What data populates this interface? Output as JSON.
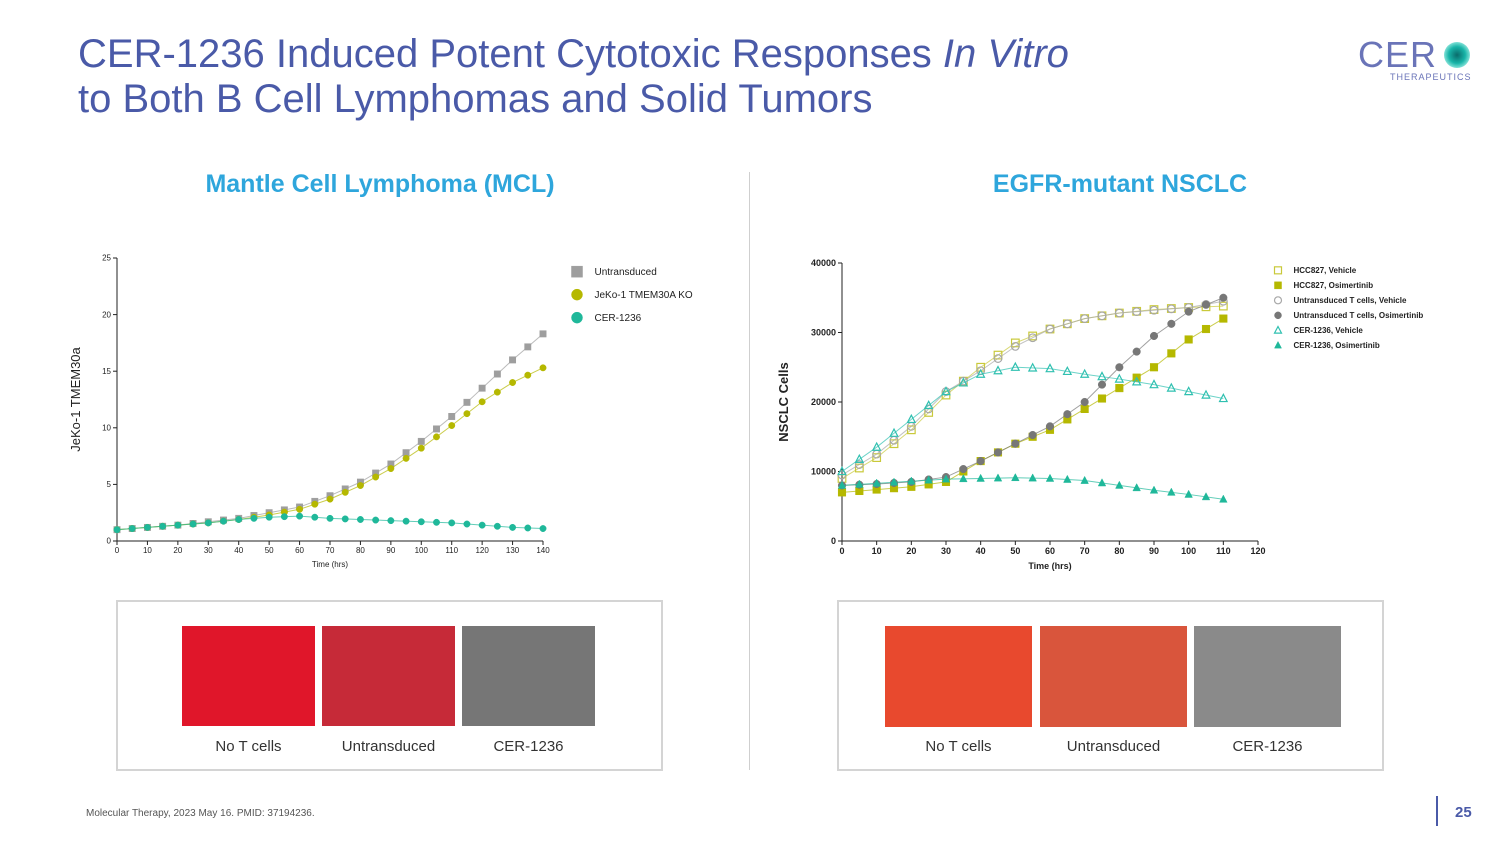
{
  "slide": {
    "title_line1_a": "CER-1236 Induced Potent Cytotoxic Responses ",
    "title_line1_b": "In Vitro",
    "title_line2": "to Both B Cell Lymphomas and Solid Tumors",
    "logo_main": "CER",
    "logo_sub": "THERAPEUTICS",
    "left_section_title": "Mantle Cell Lymphoma (MCL)",
    "right_section_title": "EGFR-mutant NSCLC",
    "footer": "Molecular Therapy, 2023 May 16. PMID: 37194236.",
    "page_number": "25",
    "left_images": [
      {
        "label": "No T cells",
        "color": "#e0162a"
      },
      {
        "label": "Untransduced",
        "color": "#c62a38"
      },
      {
        "label": "CER-1236",
        "color": "#767676"
      }
    ],
    "right_images": [
      {
        "label": "No T cells",
        "color": "#e8492e"
      },
      {
        "label": "Untransduced",
        "color": "#d9553c"
      },
      {
        "label": "CER-1236",
        "color": "#8a8a8a"
      }
    ]
  },
  "chart_data": [
    {
      "type": "line",
      "title": "Mantle Cell Lymphoma (MCL)",
      "xlabel": "Time (hrs)",
      "ylabel": "JeKo-1 TMEM30a",
      "xlim": [
        0,
        140
      ],
      "ylim": [
        0,
        25
      ],
      "xticks": [
        0,
        10,
        20,
        30,
        40,
        50,
        60,
        70,
        80,
        90,
        100,
        110,
        120,
        130,
        140
      ],
      "yticks": [
        0,
        5,
        10,
        15,
        20,
        25
      ],
      "legend_position": "top-right",
      "x": [
        0,
        10,
        20,
        30,
        40,
        50,
        60,
        70,
        80,
        90,
        100,
        110,
        120,
        130,
        140
      ],
      "series": [
        {
          "name": "Untransduced",
          "color": "#9e9e9e",
          "marker": "square",
          "values": [
            1.0,
            1.2,
            1.4,
            1.7,
            2.0,
            2.5,
            3.0,
            4.0,
            5.2,
            6.8,
            8.8,
            11.0,
            13.5,
            16.0,
            18.3
          ]
        },
        {
          "name": "JeKo-1 TMEM30A KO",
          "color": "#b5b800",
          "marker": "circle",
          "values": [
            1.0,
            1.2,
            1.4,
            1.6,
            1.9,
            2.3,
            2.8,
            3.7,
            4.9,
            6.4,
            8.2,
            10.2,
            12.3,
            14.0,
            15.3
          ]
        },
        {
          "name": "CER-1236",
          "color": "#1fb89a",
          "marker": "circle",
          "values": [
            1.0,
            1.2,
            1.4,
            1.6,
            1.9,
            2.1,
            2.2,
            2.0,
            1.9,
            1.8,
            1.7,
            1.6,
            1.4,
            1.2,
            1.1
          ]
        }
      ]
    },
    {
      "type": "line",
      "title": "EGFR-mutant NSCLC",
      "xlabel": "Time (hrs)",
      "ylabel": "NSCLC Cells",
      "xlim": [
        0,
        120
      ],
      "ylim": [
        0,
        40000
      ],
      "xticks": [
        0,
        10,
        20,
        30,
        40,
        50,
        60,
        70,
        80,
        90,
        100,
        110,
        120
      ],
      "yticks": [
        0,
        10000,
        20000,
        30000,
        40000
      ],
      "legend_position": "top-right",
      "x": [
        0,
        10,
        20,
        30,
        40,
        50,
        60,
        70,
        80,
        90,
        100,
        110
      ],
      "series": [
        {
          "name": "HCC827, Vehicle",
          "color": "#c9c93a",
          "marker": "square-open",
          "values": [
            9000,
            12000,
            16000,
            21000,
            25000,
            28500,
            30500,
            32000,
            32800,
            33300,
            33600,
            33800
          ]
        },
        {
          "name": "HCC827, Osimertinib",
          "color": "#b5b800",
          "marker": "square",
          "values": [
            7000,
            7400,
            7800,
            8500,
            11500,
            14000,
            16000,
            19000,
            22000,
            25000,
            29000,
            32000
          ]
        },
        {
          "name": "Untransduced T cells, Vehicle",
          "color": "#a8a8a8",
          "marker": "circle-open",
          "values": [
            9500,
            12500,
            16500,
            21500,
            24500,
            28000,
            30500,
            32000,
            32800,
            33200,
            33600,
            34500
          ]
        },
        {
          "name": "Untransduced T cells, Osimertinib",
          "color": "#777777",
          "marker": "circle",
          "values": [
            8000,
            8200,
            8500,
            9200,
            11500,
            14000,
            16500,
            20000,
            25000,
            29500,
            33000,
            35000
          ]
        },
        {
          "name": "CER-1236, Vehicle",
          "color": "#2fc0b0",
          "marker": "triangle-open",
          "values": [
            10000,
            13500,
            17500,
            21500,
            24000,
            25000,
            24800,
            24000,
            23300,
            22500,
            21500,
            20500
          ]
        },
        {
          "name": "CER-1236, Osimertinib",
          "color": "#1fb89a",
          "marker": "triangle",
          "values": [
            8000,
            8300,
            8600,
            8900,
            9000,
            9100,
            9000,
            8700,
            8000,
            7300,
            6700,
            6000
          ]
        }
      ]
    }
  ]
}
